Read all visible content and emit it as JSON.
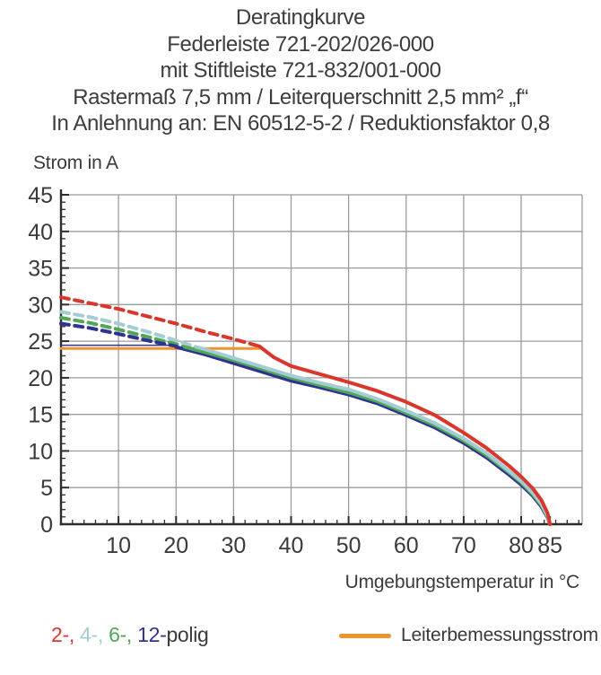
{
  "header": {
    "lines": [
      "Deratingkurve",
      "Federleiste 721-202/026-000",
      "mit Stiftleiste 721-832/001-000",
      "Rastermaß 7,5 mm / Leiterquerschnitt 2,5 mm² „f“",
      "In Anlehnung an: EN 60512-5-2 / Reduktionsfaktor 0,8"
    ]
  },
  "chart_data": {
    "type": "line",
    "title": "Deratingkurve",
    "xlabel": "Umgebungstemperatur in °C",
    "ylabel": "Strom in A",
    "xlim": [
      0,
      90.6
    ],
    "ylim": [
      0,
      45
    ],
    "grid_on": true,
    "grid_x": [
      10,
      20,
      30,
      40,
      50,
      60,
      70,
      80,
      90.6
    ],
    "grid_y": [
      5,
      10,
      15,
      20,
      25,
      30,
      35,
      40,
      45
    ],
    "x_minor_step": 2,
    "y_minor_step": 1,
    "x_ticks": [
      {
        "v": 10,
        "label": "10"
      },
      {
        "v": 20,
        "label": "20"
      },
      {
        "v": 30,
        "label": "30"
      },
      {
        "v": 40,
        "label": "40"
      },
      {
        "v": 50,
        "label": "50"
      },
      {
        "v": 60,
        "label": "60"
      },
      {
        "v": 70,
        "label": "70"
      },
      {
        "v": 80,
        "label": "80"
      },
      {
        "v": 85,
        "label": "85"
      }
    ],
    "y_ticks": [
      {
        "v": 0,
        "label": "0"
      },
      {
        "v": 5,
        "label": "5"
      },
      {
        "v": 10,
        "label": "10"
      },
      {
        "v": 15,
        "label": "15"
      },
      {
        "v": 20,
        "label": "20"
      },
      {
        "v": 25,
        "label": "25"
      },
      {
        "v": 30,
        "label": "30"
      },
      {
        "v": 35,
        "label": "35"
      },
      {
        "v": 40,
        "label": "40"
      },
      {
        "v": 45,
        "label": "45"
      }
    ],
    "style": {
      "grid": "#9b9b9b",
      "axis": "#2d2d2d"
    },
    "series": [
      {
        "id": "2-polig-dashed",
        "name": "2-polig (gestrichelt)",
        "color": "#d9372c",
        "dash": true,
        "width": 4,
        "points": [
          [
            0,
            31
          ],
          [
            5,
            30.2
          ],
          [
            10,
            29.4
          ],
          [
            15,
            28.4
          ],
          [
            20,
            27.4
          ],
          [
            25,
            26.3
          ],
          [
            30,
            25.3
          ],
          [
            34.5,
            24.3
          ]
        ]
      },
      {
        "id": "4-polig-dashed",
        "name": "4-polig (gestrichelt)",
        "color": "#a3ccd3",
        "dash": true,
        "width": 4,
        "points": [
          [
            0,
            29
          ],
          [
            5,
            28.3
          ],
          [
            10,
            27.4
          ],
          [
            15,
            26.3
          ],
          [
            20,
            25.1
          ],
          [
            23.5,
            24.2
          ]
        ]
      },
      {
        "id": "6-polig-dashed",
        "name": "6-polig (gestrichelt)",
        "color": "#4fa757",
        "dash": true,
        "width": 4,
        "points": [
          [
            0,
            28.2
          ],
          [
            5,
            27.5
          ],
          [
            10,
            26.6
          ],
          [
            15,
            25.6
          ],
          [
            20,
            24.6
          ],
          [
            21.5,
            24.2
          ]
        ]
      },
      {
        "id": "12-polig-dashed",
        "name": "12-polig (gestrichelt)",
        "color": "#2f3290",
        "dash": true,
        "width": 4,
        "points": [
          [
            0,
            27.4
          ],
          [
            5,
            26.8
          ],
          [
            10,
            26
          ],
          [
            15,
            25.1
          ],
          [
            20,
            24.3
          ]
        ]
      },
      {
        "id": "leiterbemessungsstrom",
        "name": "Leiterbemessungsstrom",
        "color": "#f0932d",
        "dash": false,
        "width": 3,
        "points": [
          [
            0,
            24
          ],
          [
            34.5,
            24
          ]
        ]
      },
      {
        "id": "12-polig-clamped",
        "name": "12-polig (begrenzt)",
        "color": "#2f3290",
        "dash": false,
        "width": 1.5,
        "points": [
          [
            0,
            24.45
          ],
          [
            20,
            24.45
          ]
        ]
      },
      {
        "id": "12-polig",
        "name": "12-polig",
        "color": "#2f3290",
        "dash": false,
        "width": 4,
        "points": [
          [
            20,
            24.2
          ],
          [
            25,
            23.2
          ],
          [
            30,
            22
          ],
          [
            35,
            20.8
          ],
          [
            40,
            19.6
          ],
          [
            45,
            18.7
          ],
          [
            50,
            17.7
          ],
          [
            55,
            16.5
          ],
          [
            60,
            14.9
          ],
          [
            65,
            13.2
          ],
          [
            70,
            11.1
          ],
          [
            74,
            9.1
          ],
          [
            78,
            6.7
          ],
          [
            80,
            5.4
          ],
          [
            82,
            3.9
          ],
          [
            83.5,
            2.4
          ],
          [
            84.6,
            0.9
          ],
          [
            85,
            0
          ]
        ]
      },
      {
        "id": "6-polig",
        "name": "6-polig",
        "color": "#4fa757",
        "dash": false,
        "width": 4,
        "points": [
          [
            21.5,
            24.2
          ],
          [
            25,
            23.5
          ],
          [
            30,
            22.4
          ],
          [
            35,
            21.2
          ],
          [
            40,
            20
          ],
          [
            45,
            19
          ],
          [
            50,
            18
          ],
          [
            55,
            16.8
          ],
          [
            60,
            15.2
          ],
          [
            65,
            13.5
          ],
          [
            70,
            11.4
          ],
          [
            74,
            9.4
          ],
          [
            78,
            7
          ],
          [
            80,
            5.7
          ],
          [
            82,
            4.1
          ],
          [
            83.5,
            2.6
          ],
          [
            84.6,
            1
          ],
          [
            85,
            0
          ]
        ]
      },
      {
        "id": "4-polig",
        "name": "4-polig",
        "color": "#a3ccd3",
        "dash": false,
        "width": 4,
        "points": [
          [
            23.5,
            24.2
          ],
          [
            25,
            23.9
          ],
          [
            30,
            22.7
          ],
          [
            35,
            21.5
          ],
          [
            40,
            20.3
          ],
          [
            45,
            19.3
          ],
          [
            50,
            18.4
          ],
          [
            55,
            17.1
          ],
          [
            60,
            15.5
          ],
          [
            65,
            13.8
          ],
          [
            70,
            11.7
          ],
          [
            74,
            9.7
          ],
          [
            78,
            7.2
          ],
          [
            80,
            5.9
          ],
          [
            82,
            4.3
          ],
          [
            83.5,
            2.8
          ],
          [
            84.6,
            1.1
          ],
          [
            85,
            0
          ]
        ]
      },
      {
        "id": "2-polig",
        "name": "2-polig",
        "color": "#d9372c",
        "dash": false,
        "width": 4,
        "points": [
          [
            34.5,
            24.3
          ],
          [
            37,
            22.8
          ],
          [
            40,
            21.6
          ],
          [
            45,
            20.5
          ],
          [
            50,
            19.4
          ],
          [
            55,
            18.2
          ],
          [
            60,
            16.7
          ],
          [
            65,
            14.9
          ],
          [
            70,
            12.5
          ],
          [
            74,
            10.4
          ],
          [
            78,
            7.9
          ],
          [
            80,
            6.5
          ],
          [
            82,
            4.9
          ],
          [
            83.5,
            3.3
          ],
          [
            84.6,
            1.5
          ],
          [
            85,
            0
          ]
        ]
      }
    ]
  },
  "legend": {
    "items": [
      {
        "id": "2polig",
        "label": "2-",
        "color": "#d9372c"
      },
      {
        "id": "4polig",
        "label": "4-",
        "color": "#a3ccd3"
      },
      {
        "id": "6polig",
        "label": "6-",
        "color": "#4fa757"
      },
      {
        "id": "12polig",
        "label": "12-",
        "color": "#2f3290"
      }
    ],
    "suffix": "polig",
    "suffix_color": "#3a3a3a",
    "rated": {
      "label": "Leiterbemessungsstrom",
      "color": "#f0932d"
    }
  }
}
